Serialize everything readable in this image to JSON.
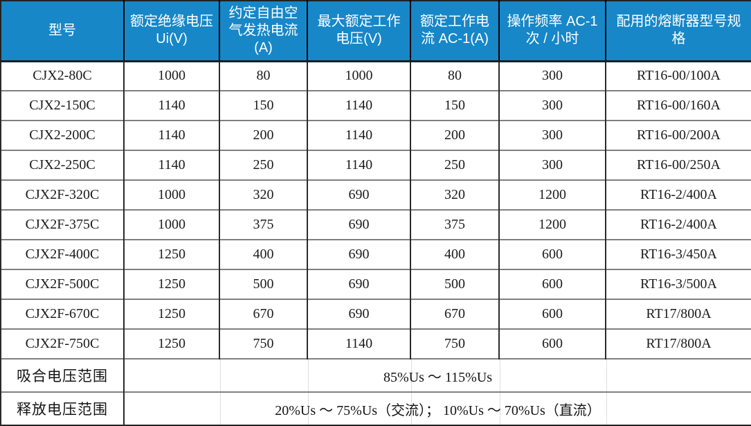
{
  "table": {
    "columns": [
      "型号",
      "额定绝缘电压 Ui(V)",
      "约定自由空气发热电流(A)",
      "最大额定工作电压(V)",
      "额定工作电流 AC-1(A)",
      "操作频率 AC-1 次 / 小时",
      "配用的熔断器型号规格"
    ],
    "rows": [
      [
        "CJX2-80C",
        "1000",
        "80",
        "1000",
        "80",
        "300",
        "RT16-00/100A"
      ],
      [
        "CJX2-150C",
        "1140",
        "150",
        "1140",
        "150",
        "300",
        "RT16-00/160A"
      ],
      [
        "CJX2-200C",
        "1140",
        "200",
        "1140",
        "200",
        "300",
        "RT16-00/200A"
      ],
      [
        "CJX2-250C",
        "1140",
        "250",
        "1140",
        "250",
        "300",
        "RT16-00/250A"
      ],
      [
        "CJX2F-320C",
        "1000",
        "320",
        "690",
        "320",
        "1200",
        "RT16-2/400A"
      ],
      [
        "CJX2F-375C",
        "1000",
        "375",
        "690",
        "375",
        "1200",
        "RT16-2/400A"
      ],
      [
        "CJX2F-400C",
        "1250",
        "400",
        "690",
        "400",
        "600",
        "RT16-3/450A"
      ],
      [
        "CJX2F-500C",
        "1250",
        "500",
        "690",
        "500",
        "600",
        "RT16-3/500A"
      ],
      [
        "CJX2F-670C",
        "1250",
        "670",
        "690",
        "670",
        "600",
        "RT17/800A"
      ],
      [
        "CJX2F-750C",
        "1250",
        "750",
        "1140",
        "750",
        "600",
        "RT17/800A"
      ]
    ],
    "footer_rows": [
      {
        "label": "吸合电压范围",
        "value": "85%Us ～ 115%Us"
      },
      {
        "label": "释放电压范围",
        "value": "20%Us ～ 75%Us（交流）； 10%Us ～ 70%Us（直流）"
      }
    ],
    "colors": {
      "header_bg": "#1787c8",
      "header_text": "#ffffff",
      "grid_vertical": "#2a2a2a",
      "grid_horizontal": "#7f7f7f",
      "body_text": "#1b1b1b"
    }
  }
}
